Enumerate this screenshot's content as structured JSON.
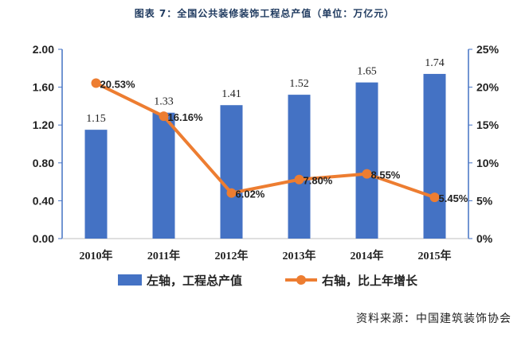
{
  "header": {
    "title": "图表 7：全国公共装修装饰工程总产值（单位：万亿元）"
  },
  "source": "资料来源：中国建筑装饰协会",
  "colors": {
    "bar": "#4472c4",
    "line": "#ed7d31",
    "axis": "#4472c4",
    "text": "#222222"
  },
  "chart_data": {
    "type": "bar",
    "categories": [
      "2010年",
      "2011年",
      "2012年",
      "2013年",
      "2014年",
      "2015年"
    ],
    "series": [
      {
        "name": "左轴，工程总产值",
        "type": "bar",
        "axis": "left",
        "values": [
          1.15,
          1.33,
          1.41,
          1.52,
          1.65,
          1.74
        ],
        "labels": [
          "1.15",
          "1.33",
          "1.41",
          "1.52",
          "1.65",
          "1.74"
        ]
      },
      {
        "name": "右轴，比上年增长",
        "type": "line",
        "axis": "right",
        "values": [
          20.53,
          16.16,
          6.02,
          7.8,
          8.55,
          5.45
        ],
        "labels": [
          "20.53%",
          "16.16%",
          "6.02%",
          "7.80%",
          "8.55%",
          "5.45%"
        ]
      }
    ],
    "y_left": {
      "ylim": [
        0,
        2.0
      ],
      "ticks": [
        "0.00",
        "0.40",
        "0.80",
        "1.20",
        "1.60",
        "2.00"
      ]
    },
    "y_right": {
      "ylim": [
        0,
        25
      ],
      "ticks": [
        "0%",
        "5%",
        "10%",
        "15%",
        "20%",
        "25%"
      ]
    },
    "grid": false,
    "legend": "bottom"
  }
}
